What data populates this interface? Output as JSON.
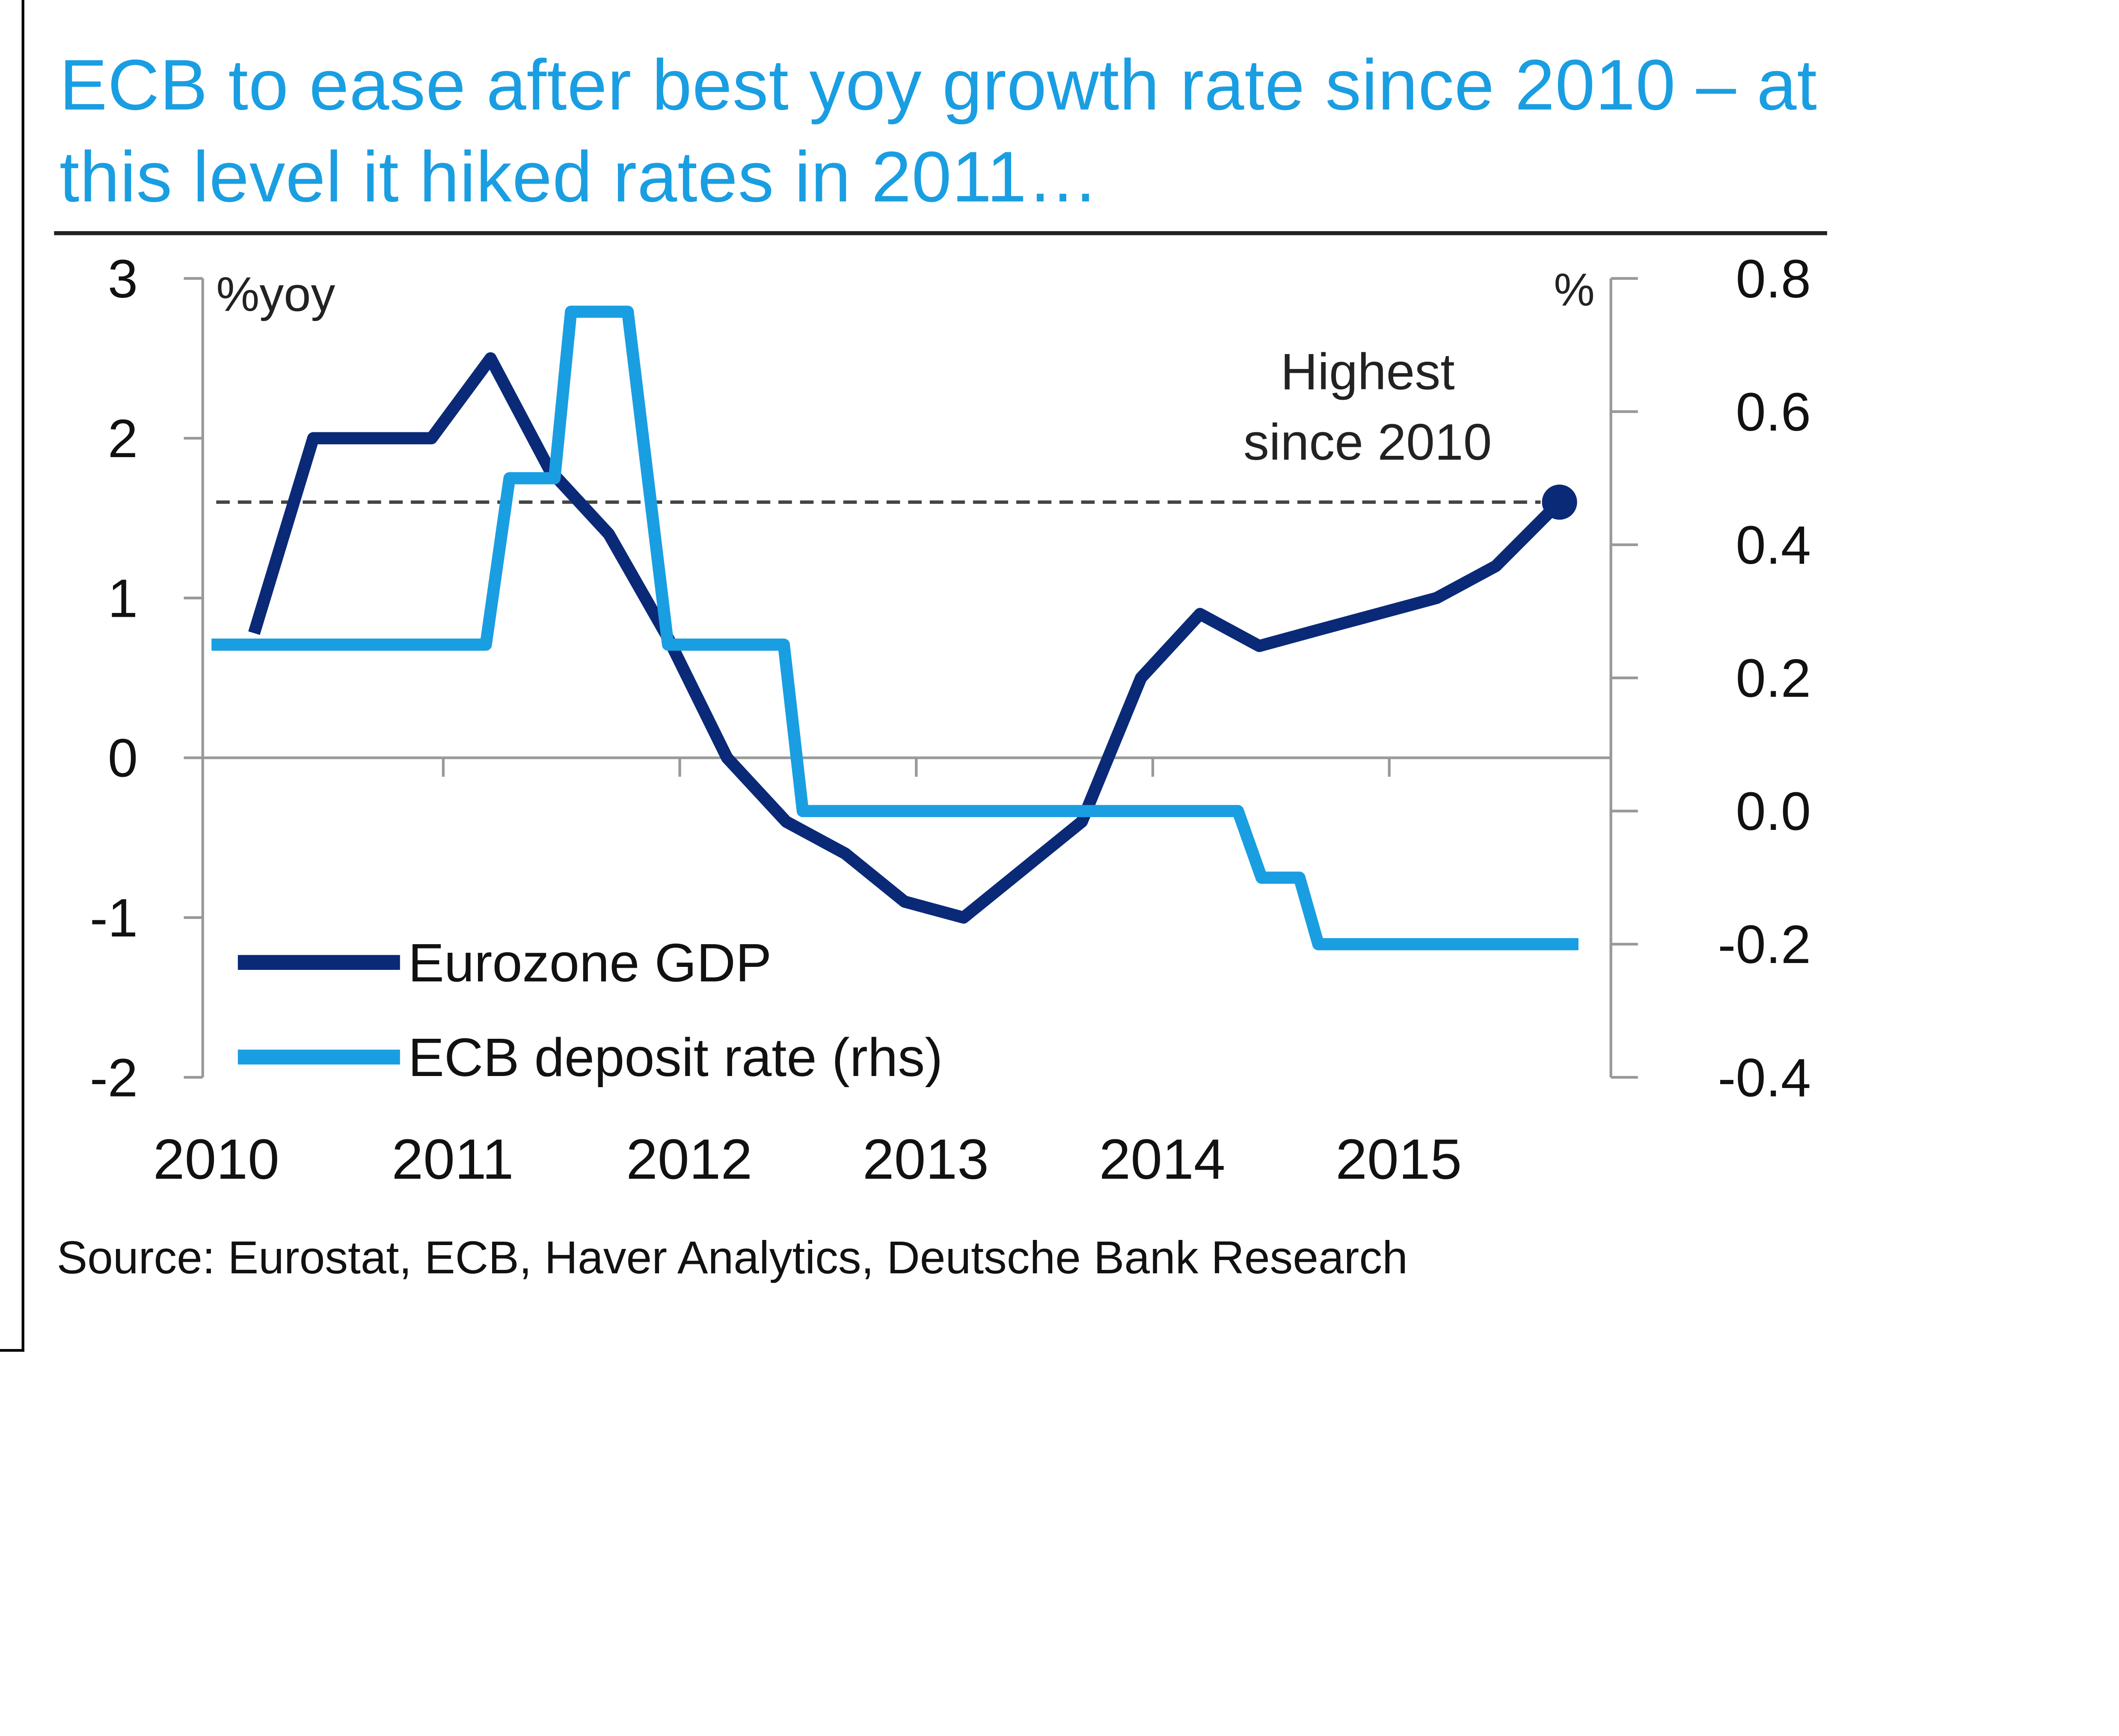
{
  "chart_data": {
    "type": "line",
    "title": "ECB to ease after best yoy growth rate since 2010 – at this level it hiked rates in 2011…",
    "source": "Source: Eurostat, ECB, Haver Analytics, Deutsche Bank Research",
    "left_axis": {
      "label": "%yoy",
      "ylim": [
        -2,
        3
      ],
      "ticks": [
        3,
        2,
        1,
        0,
        -1,
        -2
      ],
      "tick_labels": [
        "3",
        "2",
        "1",
        "0",
        "-1",
        "-2"
      ]
    },
    "right_axis": {
      "label": "%",
      "ylim": [
        -0.4,
        0.8
      ],
      "ticks": [
        0.8,
        0.6,
        0.4,
        0.2,
        0.0,
        -0.2,
        -0.4
      ],
      "tick_labels": [
        "0.8",
        "0.6",
        "0.4",
        "0.2",
        "0.0",
        "-0.2",
        "-0.4"
      ]
    },
    "x_axis": {
      "xlim": [
        2010.0,
        2016.0
      ],
      "tick_labels": [
        "2010",
        "2011",
        "2012",
        "2013",
        "2014",
        "2015"
      ],
      "ticks": [
        2010,
        2011,
        2012,
        2013,
        2014,
        2015
      ]
    },
    "grid": false,
    "legend": {
      "position": "bottom-left"
    },
    "reference_line": {
      "axis": "left",
      "value": 1.6,
      "style": "dashed"
    },
    "annotation": {
      "text_line1": "Highest",
      "text_line2": "since 2010",
      "x": 2015.75,
      "y": 1.6
    },
    "series": [
      {
        "name": "Eurozone GDP",
        "axis": "left",
        "color": "#0a2a78",
        "x": [
          2010.2,
          2010.45,
          2010.95,
          2011.2,
          2011.45,
          2011.7,
          2011.95,
          2012.2,
          2012.45,
          2012.7,
          2012.95,
          2013.2,
          2013.45,
          2013.7,
          2013.95,
          2014.2,
          2014.45,
          2014.7,
          2014.95,
          2015.2,
          2015.45,
          2015.72
        ],
        "values": [
          0.78,
          2.0,
          2.0,
          2.5,
          1.8,
          1.4,
          0.75,
          0.0,
          -0.4,
          -0.6,
          -0.9,
          -1.0,
          -0.7,
          -0.4,
          0.5,
          0.9,
          0.7,
          0.8,
          0.9,
          1.0,
          1.2,
          1.6
        ]
      },
      {
        "name": "ECB deposit rate (rhs)",
        "axis": "right",
        "color": "#1a9ee2",
        "x": [
          2010.02,
          2011.18,
          2011.28,
          2011.47,
          2011.54,
          2011.78,
          2011.95,
          2012.44,
          2012.52,
          2014.36,
          2014.46,
          2014.62,
          2014.7,
          2015.8
        ],
        "values": [
          0.25,
          0.25,
          0.5,
          0.5,
          0.75,
          0.75,
          0.25,
          0.25,
          0.0,
          0.0,
          -0.1,
          -0.1,
          -0.2,
          -0.2
        ]
      }
    ]
  },
  "colors": {
    "title": "#1a9ee2",
    "gdp": "#0a2a78",
    "deposit": "#1a9ee2",
    "axis": "#999999"
  }
}
